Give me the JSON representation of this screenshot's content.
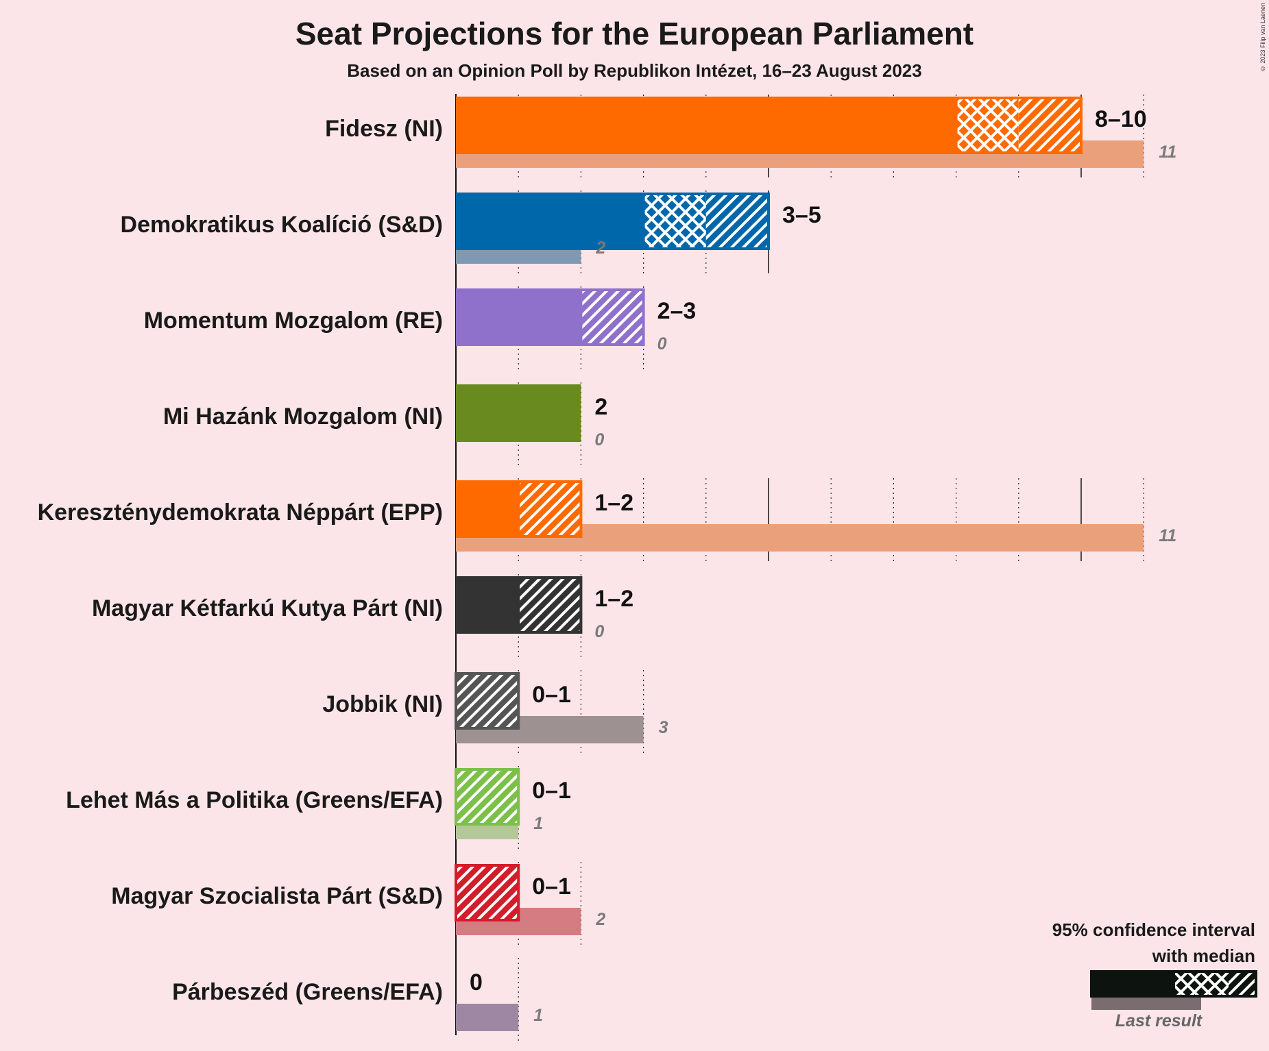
{
  "title": "Seat Projections for the European Parliament",
  "subtitle": "Based on an Opinion Poll by Republikon Intézet, 16–23 August 2023",
  "copyright": "© 2023 Filip van Laenen",
  "legend": {
    "line1": "95% confidence interval",
    "line2": "with median",
    "last_result": "Last result"
  },
  "colors": {
    "background": "#fbe5e8",
    "legend_bar": "#0d1410"
  },
  "chart_data": {
    "type": "bar",
    "orientation": "horizontal",
    "title": "Seat Projections for the European Parliament",
    "subtitle": "Based on an Opinion Poll by Republikon Intézet, 16–23 August 2023",
    "x_range": [
      0,
      11
    ],
    "grid": "dotted vertical lines at each seat, solid at every 5",
    "legend_placement": "bottom-right",
    "parties": [
      {
        "name": "Fidesz (NI)",
        "low": 8,
        "median": 9,
        "high": 10,
        "range_label": "8–10",
        "last": 11,
        "last_label": "11",
        "color": "#ff6a00",
        "last_color": "#eba07c"
      },
      {
        "name": "Demokratikus Koalíció (S&D)",
        "low": 3,
        "median": 4,
        "high": 5,
        "range_label": "3–5",
        "last": 2,
        "last_label": "2",
        "color": "#0067aa",
        "last_color": "#7f99b3"
      },
      {
        "name": "Momentum Mozgalom (RE)",
        "low": 2,
        "median": 2,
        "high": 3,
        "range_label": "2–3",
        "last": 0,
        "last_label": "0",
        "color": "#8f71cc",
        "last_color": "#b8a6da"
      },
      {
        "name": "Mi Hazánk Mozgalom (NI)",
        "low": 2,
        "median": 2,
        "high": 2,
        "range_label": "2",
        "last": 0,
        "last_label": "0",
        "color": "#688a1e",
        "last_color": "#a2b07b"
      },
      {
        "name": "Kereszténydemokrata Néppárt (EPP)",
        "low": 1,
        "median": 1,
        "high": 2,
        "range_label": "1–2",
        "last": 11,
        "last_label": "11",
        "color": "#ff6a00",
        "last_color": "#eba07c"
      },
      {
        "name": "Magyar Kétfarkú Kutya Párt (NI)",
        "low": 1,
        "median": 1,
        "high": 2,
        "range_label": "1–2",
        "last": 0,
        "last_label": "0",
        "color": "#333333",
        "last_color": "#888888"
      },
      {
        "name": "Jobbik (NI)",
        "low": 0,
        "median": 0,
        "high": 1,
        "range_label": "0–1",
        "last": 3,
        "last_label": "3",
        "color": "#555555",
        "last_color": "#9d9192"
      },
      {
        "name": "Lehet Más a Politika (Greens/EFA)",
        "low": 0,
        "median": 0,
        "high": 1,
        "range_label": "0–1",
        "last": 1,
        "last_label": "1",
        "color": "#7cc04a",
        "last_color": "#b5c699"
      },
      {
        "name": "Magyar Szocialista Párt (S&D)",
        "low": 0,
        "median": 0,
        "high": 1,
        "range_label": "0–1",
        "last": 2,
        "last_label": "2",
        "color": "#d31d2a",
        "last_color": "#d47c82"
      },
      {
        "name": "Párbeszéd (Greens/EFA)",
        "low": 0,
        "median": 0,
        "high": 0,
        "range_label": "0",
        "last": 1,
        "last_label": "1",
        "color": "#7d5f8f",
        "last_color": "#9e87a2"
      }
    ]
  }
}
